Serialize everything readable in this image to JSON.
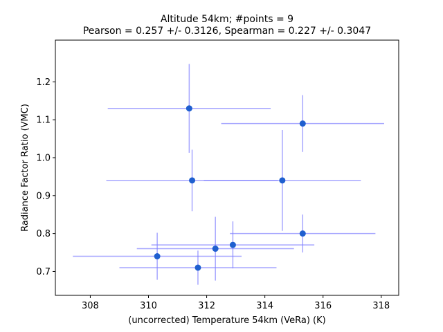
{
  "chart_data": {
    "type": "scatter",
    "title_line1": "Altitude 54km;  #points =  9",
    "title_line2": "Pearson =  0.257 +/-  0.3126, Spearman =  0.227 +/-  0.3047",
    "xlabel": "(uncorrected) Temperature 54km (VeRa) (K)",
    "ylabel": "Radiance Factor Ratio (VMC)",
    "xlim": [
      306.8,
      318.6
    ],
    "ylim": [
      0.637,
      1.31
    ],
    "xticks": [
      308,
      310,
      312,
      314,
      316,
      318
    ],
    "yticks": [
      0.7,
      0.8,
      0.9,
      1.0,
      1.1,
      1.2
    ],
    "xtick_labels": [
      "308",
      "310",
      "312",
      "314",
      "316",
      "318"
    ],
    "ytick_labels": [
      "0.7",
      "0.8",
      "0.9",
      "1.0",
      "1.1",
      "1.2"
    ],
    "grid": false,
    "point_color": "#1f5fcf",
    "errorbar_color": "#8080ff",
    "points": [
      {
        "x": 311.4,
        "y": 1.13,
        "xerr": 2.8,
        "yerr": 0.117
      },
      {
        "x": 315.3,
        "y": 1.09,
        "xerr": 2.8,
        "yerr": 0.075
      },
      {
        "x": 311.5,
        "y": 0.94,
        "xerr": 2.95,
        "yerr": 0.081
      },
      {
        "x": 314.6,
        "y": 0.94,
        "xerr": 2.7,
        "yerr": 0.133
      },
      {
        "x": 315.3,
        "y": 0.8,
        "xerr": 2.5,
        "yerr": 0.05
      },
      {
        "x": 312.9,
        "y": 0.77,
        "xerr": 2.8,
        "yerr": 0.062
      },
      {
        "x": 312.3,
        "y": 0.76,
        "xerr": 2.7,
        "yerr": 0.084
      },
      {
        "x": 310.3,
        "y": 0.74,
        "xerr": 2.9,
        "yerr": 0.062
      },
      {
        "x": 311.7,
        "y": 0.71,
        "xerr": 2.7,
        "yerr": 0.045
      }
    ]
  }
}
